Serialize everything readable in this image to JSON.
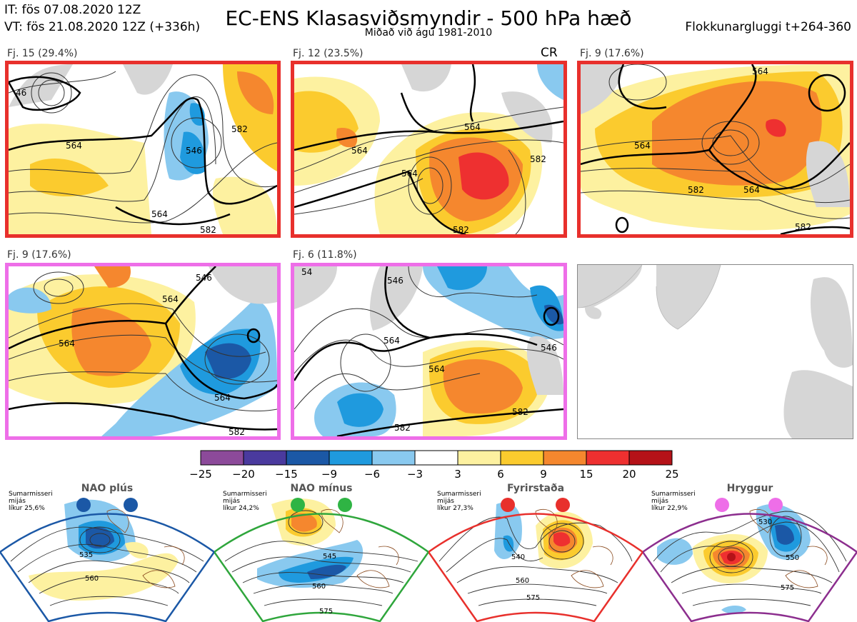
{
  "header": {
    "it": "IT: fös 07.08.2020 12Z",
    "vt": "VT: fös 21.08.2020 12Z  (+336h)",
    "title": "EC-ENS Klasasviðsmyndir - 500 hPa hæð",
    "subtitle": "Miðað við ágú 1981-2010",
    "window": "Flokkunargluggi t+264-360"
  },
  "panels": [
    {
      "label": "Fj. 15 (29.4%)",
      "border": "#e8302c",
      "contours": [
        "46",
        "564",
        "546",
        "564",
        "582",
        "582"
      ]
    },
    {
      "label": "Fj. 12 (23.5%)",
      "border": "#e8302c",
      "tag": "CR",
      "contours": [
        "564",
        "564",
        "564",
        "582",
        "582"
      ]
    },
    {
      "label": "Fj. 9 (17.6%)",
      "border": "#e8302c",
      "contours": [
        "564",
        "564",
        "564",
        "582",
        "582"
      ]
    },
    {
      "label": "Fj. 9 (17.6%)",
      "border": "#ee6ee8",
      "contours": [
        "564",
        "546",
        "564",
        "564",
        "582"
      ]
    },
    {
      "label": "Fj. 6 (11.8%)",
      "border": "#ee6ee8",
      "contours": [
        "54",
        "546",
        "564",
        "564",
        "582",
        "582",
        "546"
      ]
    }
  ],
  "colorbar": {
    "ticks": [
      "−25",
      "−20",
      "−15",
      "−9",
      "−6",
      "−3",
      "3",
      "6",
      "9",
      "15",
      "20",
      "25"
    ],
    "colors": [
      "#8c4a9a",
      "#4a3a9e",
      "#1b58a6",
      "#1f9ade",
      "#89c9ef",
      "#ffffff",
      "#fdf1a0",
      "#fbcb2e",
      "#f5872e",
      "#ee3030",
      "#b51218"
    ]
  },
  "regimes": [
    {
      "title": "NAO plús",
      "note": [
        "Sumarmisseri",
        "mijás",
        "líkur 25,6%"
      ],
      "color": "#1b58a6",
      "dot": "#1b58a6",
      "contours": [
        "535",
        "560"
      ]
    },
    {
      "title": "NAO mínus",
      "note": [
        "Sumarmisseri",
        "mijás",
        "líkur 24,2%"
      ],
      "color": "#2fa63c",
      "dot": "#2fb444",
      "contours": [
        "545",
        "560",
        "575"
      ]
    },
    {
      "title": "Fyrirstaða",
      "note": [
        "Sumarmisseri",
        "mijás",
        "líkur 27,3%"
      ],
      "color": "#e8302c",
      "dot": "#e8302c",
      "contours": [
        "540",
        "560",
        "575"
      ]
    },
    {
      "title": "Hryggur",
      "note": [
        "Sumarmisseri",
        "mijás",
        "líkur 22,9%"
      ],
      "color": "#8c2e8e",
      "dot": "#ee6ee8",
      "contours": [
        "530",
        "550",
        "575"
      ]
    }
  ]
}
